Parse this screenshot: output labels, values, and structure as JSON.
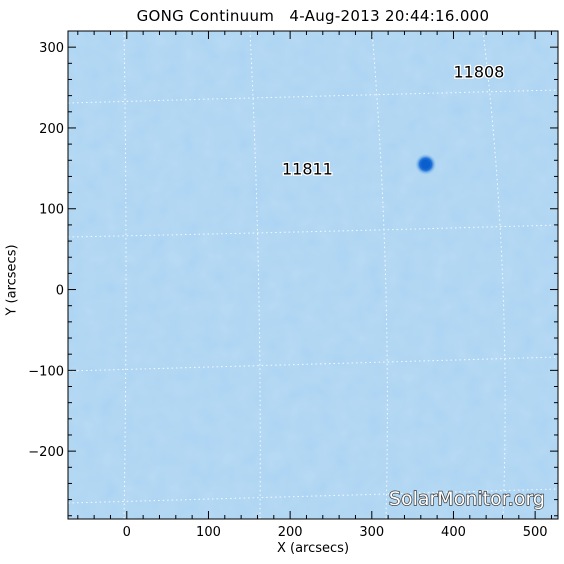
{
  "title": "GONG Continuum   4-Aug-2013 20:44:16.000",
  "watermark": "SolarMonitor.org",
  "colors": {
    "background": "#aad3f2",
    "sunspot": "#0a5fcf",
    "grid": "#ffffff",
    "axis": "#000000"
  },
  "chart_data": {
    "type": "image",
    "title": "GONG Continuum   4-Aug-2013 20:44:16.000",
    "xlabel": "X (arcsecs)",
    "ylabel": "Y (arcsecs)",
    "xlim": [
      -72,
      528
    ],
    "ylim": [
      -284,
      320
    ],
    "x_ticks": [
      0,
      100,
      200,
      300,
      400,
      500
    ],
    "y_ticks": [
      -200,
      -100,
      0,
      100,
      200,
      300
    ],
    "x_tick_labels": [
      "0",
      "100",
      "200",
      "300",
      "400",
      "500"
    ],
    "y_tick_labels": [
      "−200",
      "−100",
      "0",
      "100",
      "200",
      "300"
    ],
    "grid": "heliographic, dotted",
    "regions": [
      {
        "label": "11808",
        "x": 400,
        "y": 270
      },
      {
        "label": "11811",
        "x": 190,
        "y": 150
      }
    ],
    "sunspots": [
      {
        "x": 366,
        "y": 155
      }
    ]
  }
}
